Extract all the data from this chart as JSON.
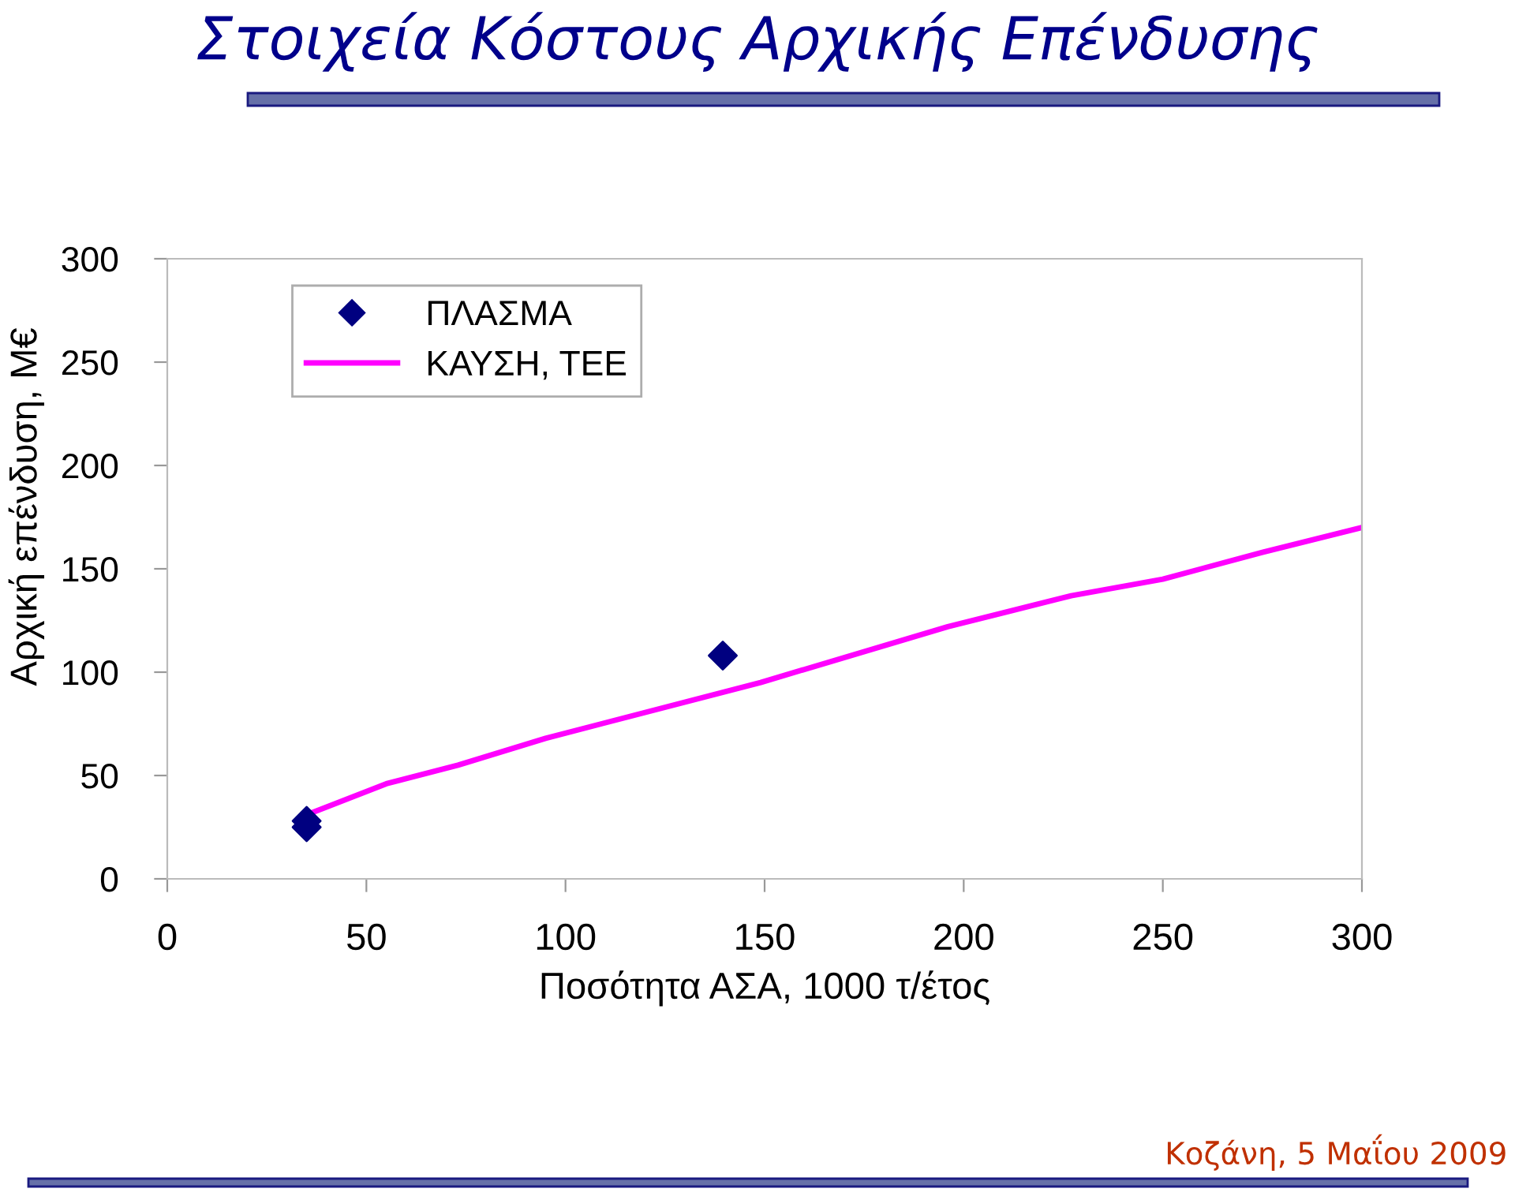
{
  "chart_data": {
    "type": "scatter",
    "title": "Στοιχεία Κόστους Αρχικής Επένδυσης",
    "xlabel": "Ποσότητα ΑΣΑ, 1000 τ/έτος",
    "ylabel": "Αρχική επένδυση, Μ€",
    "annotations": [
      "Κοζάνη, 5 Μαΐου 2009"
    ],
    "series": [
      {
        "name": "ΠΛΑΣΜΑ",
        "color": "#000080",
        "marker": "diamond",
        "x": [
          35,
          35,
          139.5
        ],
        "values": [
          28,
          25,
          108
        ]
      },
      {
        "name": "ΚΑΥΣΗ, ΤΕΕ",
        "type": "line",
        "color": "#ff00ff",
        "marker": "none",
        "x": [
          35,
          55,
          73,
          95,
          149,
          196,
          227,
          250,
          275,
          300
        ],
        "values": [
          31,
          46,
          55,
          68,
          95,
          122,
          137,
          145,
          158,
          170
        ]
      }
    ],
    "xlim": [
      0,
      300
    ],
    "ylim": [
      0,
      300
    ],
    "xticks": [
      0,
      50,
      100,
      150,
      200,
      250,
      300
    ],
    "yticks": [
      0,
      50,
      100,
      150,
      200,
      250,
      300
    ],
    "grid": false,
    "legend": "top left"
  }
}
